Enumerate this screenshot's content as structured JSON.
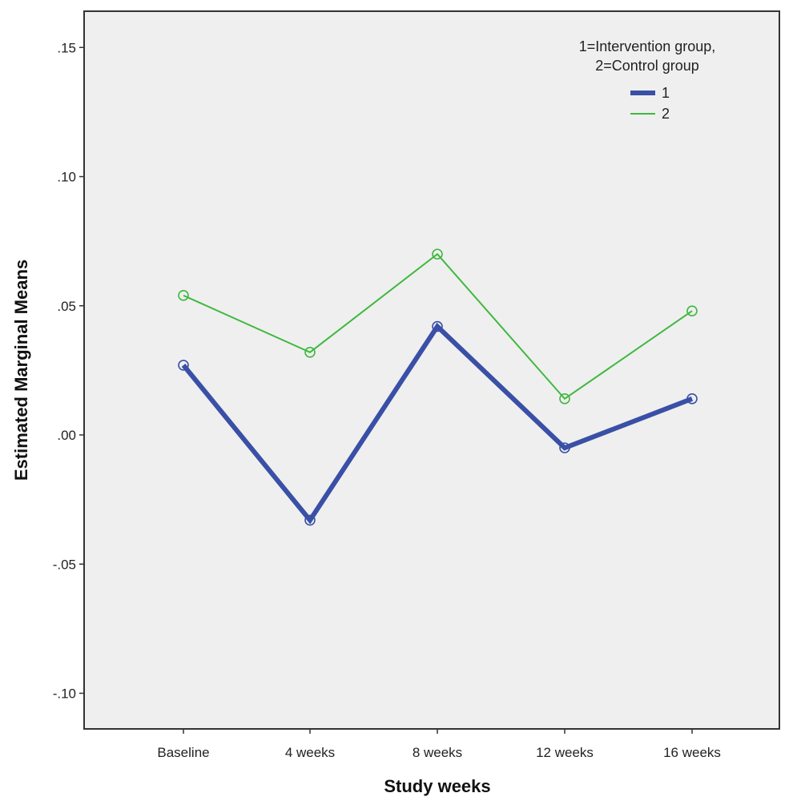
{
  "chart_data": {
    "type": "line",
    "title": "",
    "xlabel": "Study weeks",
    "ylabel": "Estimated Marginal Means",
    "categories": [
      "Baseline",
      "4 weeks",
      "8 weeks",
      "12 weeks",
      "16 weeks"
    ],
    "ylim": [
      -0.115,
      0.165
    ],
    "yticks": [
      0.15,
      0.1,
      0.05,
      0.0,
      -0.05,
      -0.1
    ],
    "ytick_labels": [
      ".15",
      ".10",
      ".05",
      ".00",
      "-.05",
      "-.10"
    ],
    "grid": false,
    "legend": {
      "title_line1": "1=Intervention group,",
      "title_line2": "2=Control group",
      "placement": "top-right"
    },
    "series": [
      {
        "name": "1",
        "values": [
          0.027,
          -0.033,
          0.042,
          -0.005,
          0.014
        ],
        "color": "#3a4fa6",
        "line_width": 6
      },
      {
        "name": "2",
        "values": [
          0.054,
          0.032,
          0.07,
          0.014,
          0.048
        ],
        "color": "#3eb83e",
        "line_width": 2
      }
    ],
    "colors": {
      "plot_background": "#efefef",
      "frame": "#333333"
    }
  }
}
